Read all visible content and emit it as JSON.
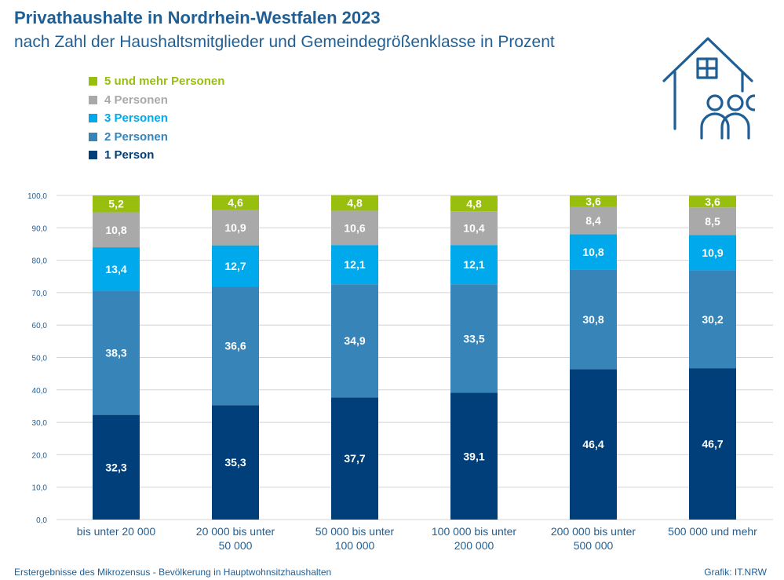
{
  "title": "Privathaushalte in Nordrhein-Westfalen 2023",
  "subtitle": "nach Zahl der Haushaltsmitglieder und Gemeindegrößenklasse in Prozent",
  "footer": {
    "source": "Erstergebnisse des Mikrozensus - Bevölkerung in Hauptwohnsitzhaushalten",
    "credit": "Grafik: IT.NRW"
  },
  "colors": {
    "title": "#1f5f95",
    "axis_text": "#1f5f95",
    "gridline": "#d4d4d4"
  },
  "icon": "house-with-family-icon",
  "chart_data": {
    "type": "bar",
    "stacked": true,
    "categories": [
      "bis unter 20 000",
      "20 000 bis unter 50 000",
      "50 000 bis unter 100 000",
      "100 000 bis unter 200 000",
      "200 000 bis unter 500 000",
      "500 000 und mehr"
    ],
    "category_lines": [
      [
        "bis unter 20 000"
      ],
      [
        "20 000 bis unter",
        "50 000"
      ],
      [
        "50 000 bis unter",
        "100 000"
      ],
      [
        "100 000 bis unter",
        "200 000"
      ],
      [
        "200 000 bis unter",
        "500 000"
      ],
      [
        "500 000 und mehr"
      ]
    ],
    "series": [
      {
        "name": "1 Person",
        "color": "#003f7a",
        "values": [
          32.3,
          35.3,
          37.7,
          39.1,
          46.4,
          46.7
        ]
      },
      {
        "name": "2 Personen",
        "color": "#3784b9",
        "values": [
          38.3,
          36.6,
          34.9,
          33.5,
          30.8,
          30.2
        ]
      },
      {
        "name": "3 Personen",
        "color": "#00a9ec",
        "values": [
          13.4,
          12.7,
          12.1,
          12.1,
          10.8,
          10.9
        ]
      },
      {
        "name": "4 Personen",
        "color": "#a9a9a9",
        "values": [
          10.8,
          10.9,
          10.6,
          10.4,
          8.4,
          8.5
        ]
      },
      {
        "name": "5 und mehr Personen",
        "color": "#98bf0d",
        "values": [
          5.2,
          4.6,
          4.8,
          4.8,
          3.6,
          3.6
        ]
      }
    ],
    "legend_order": [
      "5 und mehr Personen",
      "4 Personen",
      "3 Personen",
      "2 Personen",
      "1 Person"
    ],
    "legend_position": "top-left",
    "ylim": [
      0,
      100
    ],
    "yticks": [
      "0,0",
      "10,0",
      "20,0",
      "30,0",
      "40,0",
      "50,0",
      "60,0",
      "70,0",
      "80,0",
      "90,0",
      "100,0"
    ],
    "grid": true,
    "decimal_separator": ","
  }
}
